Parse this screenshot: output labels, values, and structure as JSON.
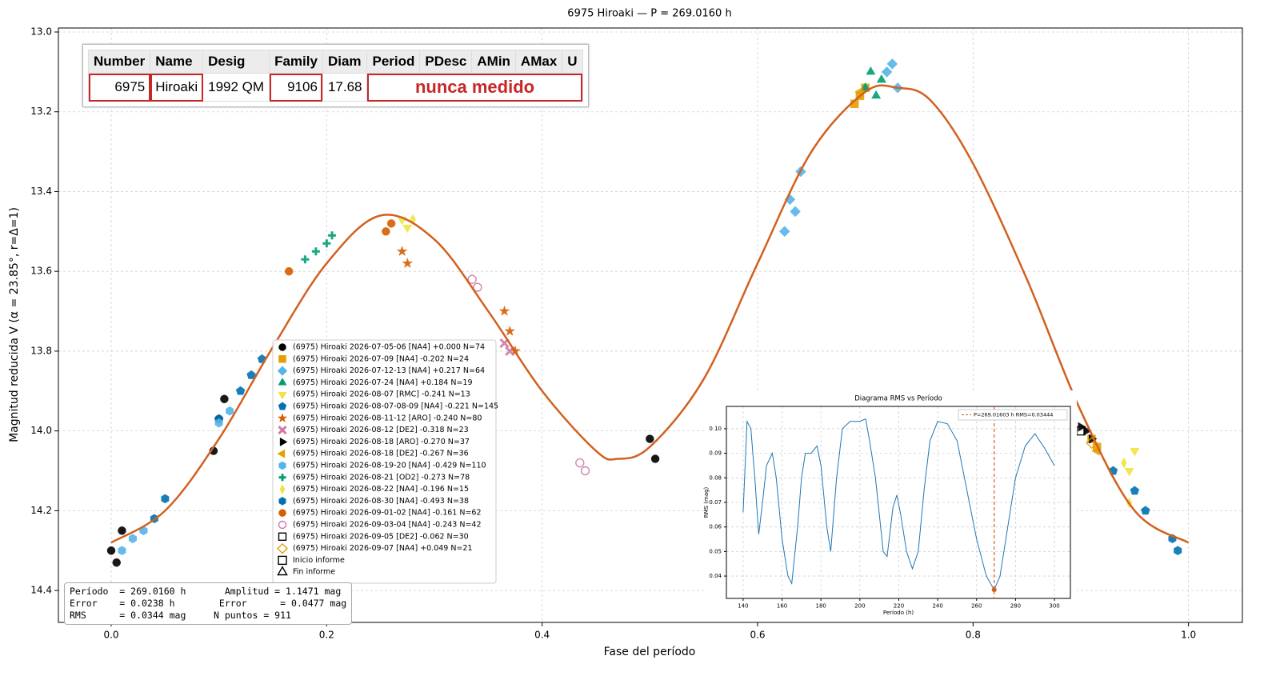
{
  "chart_data": [
    {
      "type": "scatter",
      "title": "6975 Hiroaki — P = 269.0160 h",
      "xlabel": "Fase del período",
      "ylabel": "Magnitud reducida V  (α = 23.85°, r=Δ=1)",
      "xlim": [
        -0.049,
        1.05
      ],
      "ylim": [
        14.48,
        12.99
      ],
      "xticks": [
        {
          "value": 0,
          "label": "0.0"
        },
        0.2,
        0.4,
        0.6,
        0.8,
        {
          "value": 1,
          "label": "1.0"
        }
      ],
      "yticks": [
        {
          "value": 13,
          "label": "13.0"
        },
        13.2,
        13.4,
        13.6,
        13.8,
        {
          "value": 14,
          "label": "14.0"
        },
        14.2,
        14.4
      ],
      "grid": true,
      "series": [
        {
          "name": "(6975) Hiroaki 2026-07-05-06 [NA4] +0.000 N=74",
          "color": "#000000",
          "marker": "circle",
          "x": [
            0.0,
            0.005,
            0.01,
            0.095,
            0.1,
            0.105,
            0.5,
            0.505
          ],
          "values": [
            14.3,
            14.33,
            14.25,
            14.05,
            13.97,
            13.92,
            14.02,
            14.07
          ]
        },
        {
          "name": "(6975) Hiroaki 2026-07-09 [NA4] -0.202 N=24",
          "color": "#e69f00",
          "marker": "square",
          "x": [
            0.69,
            0.695,
            0.7,
            0.91,
            0.915
          ],
          "values": [
            13.18,
            13.16,
            13.14,
            14.02,
            14.04
          ]
        },
        {
          "name": "(6975) Hiroaki 2026-07-12-13 [NA4] +0.217 N=64",
          "color": "#56b4e9",
          "marker": "diamond",
          "x": [
            0.625,
            0.63,
            0.635,
            0.64,
            0.72,
            0.725,
            0.73
          ],
          "values": [
            13.5,
            13.42,
            13.45,
            13.35,
            13.1,
            13.08,
            13.14
          ]
        },
        {
          "name": "(6975) Hiroaki 2026-07-24 [NA4] +0.184 N=19",
          "color": "#009e73",
          "marker": "triangle-up",
          "x": [
            0.7,
            0.705,
            0.71,
            0.715
          ],
          "values": [
            13.14,
            13.1,
            13.16,
            13.12
          ]
        },
        {
          "name": "(6975) Hiroaki 2026-08-07 [RMC] -0.241 N=13",
          "color": "#f0e442",
          "marker": "triangle-down",
          "x": [
            0.27,
            0.275,
            0.945,
            0.95
          ],
          "values": [
            13.47,
            13.49,
            14.1,
            14.05
          ]
        },
        {
          "name": "(6975) Hiroaki 2026-08-07-08-09 [NA4] -0.221 N=145",
          "color": "#0072b2",
          "marker": "pentagon",
          "x": [
            0.1,
            0.12,
            0.13,
            0.14,
            0.93,
            0.95,
            0.96
          ],
          "values": [
            13.97,
            13.9,
            13.86,
            13.82,
            14.1,
            14.15,
            14.2
          ]
        },
        {
          "name": "(6975) Hiroaki 2026-08-11-12 [ARO] -0.240 N=80",
          "color": "#d55e00",
          "marker": "star",
          "x": [
            0.27,
            0.275,
            0.365,
            0.37,
            0.375
          ],
          "values": [
            13.55,
            13.58,
            13.7,
            13.75,
            13.8
          ]
        },
        {
          "name": "(6975) Hiroaki 2026-08-12 [DE2] -0.318 N=23",
          "color": "#cc79a7",
          "marker": "x",
          "x": [
            0.365,
            0.37
          ],
          "values": [
            13.78,
            13.8
          ]
        },
        {
          "name": "(6975) Hiroaki 2026-08-18 [ARO] -0.270 N=37",
          "color": "#000000",
          "marker": "triangle-right",
          "x": [
            0.9,
            0.905,
            0.91
          ],
          "values": [
            13.99,
            14.0,
            14.02
          ]
        },
        {
          "name": "(6975) Hiroaki 2026-08-18 [DE2] -0.267 N=36",
          "color": "#e69f00",
          "marker": "triangle-left",
          "x": [
            0.695,
            0.915
          ],
          "values": [
            13.15,
            14.05
          ]
        },
        {
          "name": "(6975) Hiroaki 2026-08-19-20 [NA4] -0.429 N=110",
          "color": "#56b4e9",
          "marker": "hexagon",
          "x": [
            0.01,
            0.02,
            0.03,
            0.1,
            0.11
          ],
          "values": [
            14.3,
            14.27,
            14.25,
            13.98,
            13.95
          ]
        },
        {
          "name": "(6975) Hiroaki 2026-08-21 [OD2] -0.273 N=78",
          "color": "#009e73",
          "marker": "plus",
          "x": [
            0.18,
            0.19,
            0.2,
            0.205
          ],
          "values": [
            13.57,
            13.55,
            13.53,
            13.51
          ]
        },
        {
          "name": "(6975) Hiroaki 2026-08-22 [NA4] -0.196 N=15",
          "color": "#f0e442",
          "marker": "thin-diamond",
          "x": [
            0.28,
            0.94,
            0.945
          ],
          "values": [
            13.47,
            14.08,
            14.18
          ]
        },
        {
          "name": "(6975) Hiroaki 2026-08-30 [NA4] -0.493 N=38",
          "color": "#0072b2",
          "marker": "hexagon",
          "x": [
            0.04,
            0.05,
            0.985,
            0.99
          ],
          "values": [
            14.22,
            14.17,
            14.27,
            14.3
          ]
        },
        {
          "name": "(6975) Hiroaki 2026-09-01-02 [NA4] -0.161 N=62",
          "color": "#d55e00",
          "marker": "circle",
          "x": [
            0.165,
            0.255,
            0.26
          ],
          "values": [
            13.6,
            13.5,
            13.48
          ]
        },
        {
          "name": "(6975) Hiroaki 2026-09-03-04 [NA4] -0.243 N=42",
          "color": "#cc79a7",
          "marker": "open-circle",
          "x": [
            0.335,
            0.34,
            0.435,
            0.44
          ],
          "values": [
            13.62,
            13.64,
            14.08,
            14.1
          ]
        },
        {
          "name": "(6975) Hiroaki 2026-09-05 [DE2] -0.062 N=30",
          "color": "#000000",
          "marker": "open-square",
          "x": [
            0.9
          ],
          "values": [
            14.0
          ]
        },
        {
          "name": "(6975) Hiroaki 2026-09-07 [NA4] +0.049 N=21",
          "color": "#e69f00",
          "marker": "open-diamond",
          "x": [
            0.91
          ],
          "values": [
            14.03
          ]
        }
      ],
      "legend_extra": [
        "Inicio informe",
        "Fin informe"
      ],
      "fit_curve": {
        "color": "#d2601f",
        "x": [
          0,
          0.05,
          0.1,
          0.15,
          0.2,
          0.25,
          0.3,
          0.35,
          0.4,
          0.45,
          0.47,
          0.5,
          0.55,
          0.6,
          0.65,
          0.7,
          0.73,
          0.76,
          0.8,
          0.85,
          0.9,
          0.95,
          1.0
        ],
        "values": [
          14.28,
          14.2,
          14.02,
          13.79,
          13.58,
          13.46,
          13.52,
          13.7,
          13.9,
          14.05,
          14.07,
          14.04,
          13.87,
          13.58,
          13.3,
          13.15,
          13.14,
          13.17,
          13.33,
          13.62,
          13.95,
          14.2,
          14.28
        ]
      }
    },
    {
      "type": "line",
      "title": "Diagrama RMS vs Período",
      "xlabel": "Período (h)",
      "ylabel": "RMS (mag)",
      "color": "#1f77b4",
      "xlim": [
        131.4,
        308.2
      ],
      "ylim": [
        0.0309,
        0.1091
      ],
      "xticks": [
        140,
        160,
        180,
        200,
        220,
        240,
        260,
        280,
        300
      ],
      "yticks": [
        0.04,
        0.05,
        0.06,
        0.07,
        0.08,
        0.09,
        {
          "value": 0.1,
          "label": "0.10"
        }
      ],
      "grid": true,
      "x": [
        140,
        142,
        144,
        146,
        148,
        150,
        152,
        155,
        157,
        160,
        163,
        165,
        168,
        170,
        172,
        175,
        178,
        180,
        183,
        185,
        188,
        191,
        195,
        200,
        203,
        205,
        208,
        210,
        212,
        214,
        217,
        219,
        221,
        224,
        227,
        230,
        233,
        236,
        240,
        245,
        250,
        255,
        260,
        265,
        269,
        272,
        276,
        280,
        285,
        290,
        295,
        300
      ],
      "values": [
        0.066,
        0.103,
        0.1,
        0.08,
        0.057,
        0.07,
        0.085,
        0.09,
        0.08,
        0.055,
        0.04,
        0.037,
        0.06,
        0.08,
        0.09,
        0.09,
        0.093,
        0.085,
        0.06,
        0.05,
        0.08,
        0.1,
        0.103,
        0.103,
        0.104,
        0.095,
        0.08,
        0.065,
        0.05,
        0.048,
        0.068,
        0.073,
        0.065,
        0.05,
        0.043,
        0.05,
        0.075,
        0.095,
        0.103,
        0.102,
        0.095,
        0.075,
        0.055,
        0.04,
        0.0344,
        0.04,
        0.06,
        0.08,
        0.093,
        0.098,
        0.092,
        0.085
      ],
      "best": {
        "x": 269.01603,
        "y": 0.03444,
        "label": "P=269.01603 h   RMS=0.03444",
        "color": "#d2601f"
      }
    }
  ],
  "table": {
    "headers": [
      "Number",
      "Name",
      "Desig",
      "Family",
      "Diam",
      "Period",
      "PDesc",
      "AMin",
      "AMax",
      "U"
    ],
    "rows": [
      [
        "6975",
        "Hiroaki",
        "1992 QM",
        "9106",
        "17.68",
        "nunca medido"
      ]
    ],
    "highlight": [
      0,
      1,
      3,
      5
    ]
  },
  "info_box": [
    "Período  = 269.0160 h       Amplitud = 1.1471 mag",
    "Error    = 0.0238 h        Error      = 0.0477 mag",
    "RMS      = 0.0344 mag     N puntos = 911"
  ]
}
